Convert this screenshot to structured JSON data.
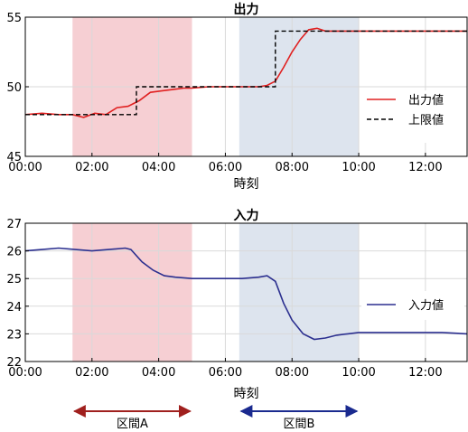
{
  "chart_data": [
    {
      "type": "line",
      "title": "出力",
      "xlabel": "時刻",
      "ylabel": "",
      "x_range": [
        "00:00",
        "13:15"
      ],
      "ylim": [
        45,
        55
      ],
      "yticks": [
        45,
        50,
        55
      ],
      "xticks": [
        "00:00",
        "02:00",
        "04:00",
        "06:00",
        "08:00",
        "10:00",
        "12:00"
      ],
      "grid": true,
      "legend": "right",
      "shaded_regions": [
        {
          "from": "01:25",
          "to": "05:00",
          "color": "#f6cfd3"
        },
        {
          "from": "06:25",
          "to": "10:00",
          "color": "#dde4ee"
        }
      ],
      "series": [
        {
          "name": "出力値",
          "color": "#e02020",
          "style": "solid",
          "x": [
            "00:00",
            "00:30",
            "01:00",
            "01:25",
            "01:45",
            "02:05",
            "02:25",
            "02:45",
            "03:05",
            "03:25",
            "03:45",
            "04:05",
            "04:25",
            "04:45",
            "05:00",
            "05:30",
            "06:00",
            "06:30",
            "07:00",
            "07:15",
            "07:30",
            "07:45",
            "08:00",
            "08:15",
            "08:30",
            "08:45",
            "09:00",
            "09:30",
            "10:00",
            "10:30",
            "11:00",
            "11:30",
            "12:00",
            "12:30",
            "13:15"
          ],
          "values": [
            48.0,
            48.1,
            48.0,
            48.0,
            47.8,
            48.1,
            48.0,
            48.5,
            48.6,
            49.0,
            49.6,
            49.7,
            49.8,
            49.9,
            49.9,
            50.0,
            50.0,
            50.0,
            50.0,
            50.1,
            50.4,
            51.4,
            52.5,
            53.4,
            54.1,
            54.2,
            54.0,
            54.0,
            54.0,
            54.0,
            54.0,
            54.0,
            54.0,
            54.0,
            54.0
          ]
        },
        {
          "name": "上限値",
          "color": "#000000",
          "style": "dashed",
          "x": [
            "00:00",
            "01:25",
            "02:00",
            "03:20",
            "03:20",
            "05:00",
            "06:00",
            "07:30",
            "07:30",
            "08:30",
            "08:30",
            "13:15"
          ],
          "values": [
            48,
            48,
            48,
            48,
            50,
            50,
            50,
            50,
            54,
            54,
            54,
            54
          ]
        }
      ]
    },
    {
      "type": "line",
      "title": "入力",
      "xlabel": "時刻",
      "ylabel": "",
      "x_range": [
        "00:00",
        "13:15"
      ],
      "ylim": [
        22,
        27
      ],
      "yticks": [
        22,
        23,
        24,
        25,
        26,
        27
      ],
      "xticks": [
        "00:00",
        "02:00",
        "04:00",
        "06:00",
        "08:00",
        "10:00",
        "12:00"
      ],
      "grid": true,
      "legend": "right",
      "shaded_regions": [
        {
          "from": "01:25",
          "to": "05:00",
          "color": "#f6cfd3"
        },
        {
          "from": "06:25",
          "to": "10:00",
          "color": "#dde4ee"
        }
      ],
      "series": [
        {
          "name": "入力値",
          "color": "#2b2f8f",
          "style": "solid",
          "x": [
            "00:00",
            "00:30",
            "01:00",
            "01:30",
            "02:00",
            "02:30",
            "03:00",
            "03:10",
            "03:30",
            "03:50",
            "04:10",
            "04:30",
            "05:00",
            "05:30",
            "06:00",
            "06:30",
            "07:00",
            "07:15",
            "07:30",
            "07:45",
            "08:00",
            "08:20",
            "08:40",
            "09:00",
            "09:20",
            "09:40",
            "10:00",
            "10:30",
            "11:00",
            "11:30",
            "12:00",
            "12:30",
            "13:15"
          ],
          "values": [
            26.0,
            26.05,
            26.1,
            26.05,
            26.0,
            26.05,
            26.1,
            26.05,
            25.6,
            25.3,
            25.1,
            25.05,
            25.0,
            25.0,
            25.0,
            25.0,
            25.05,
            25.1,
            24.9,
            24.1,
            23.5,
            23.0,
            22.8,
            22.85,
            22.95,
            23.0,
            23.05,
            23.05,
            23.05,
            23.05,
            23.05,
            23.05,
            23.0
          ]
        }
      ]
    }
  ],
  "annotations": [
    {
      "label": "区間A",
      "from": "01:25",
      "to": "05:00",
      "color": "#a0201e"
    },
    {
      "label": "区間B",
      "from": "06:25",
      "to": "10:00",
      "color": "#1a2a8f"
    }
  ]
}
